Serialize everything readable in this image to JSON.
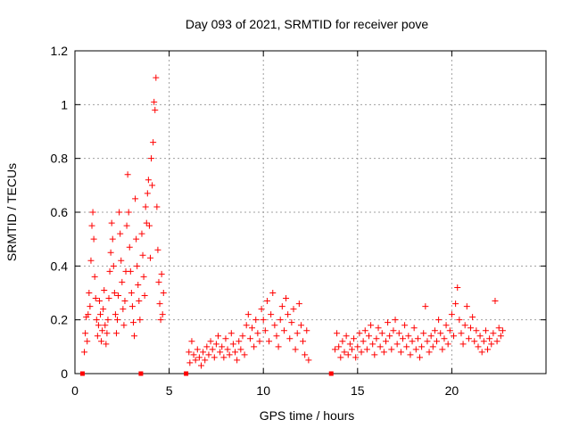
{
  "chart_data": {
    "type": "scatter",
    "title": "Day 093 of 2021, SRMTID for receiver pove",
    "xlabel": "GPS time / hours",
    "ylabel": "SRMTID / TECUs",
    "xlim": [
      0,
      25
    ],
    "ylim": [
      0,
      1.2
    ],
    "xticks": [
      0,
      5,
      10,
      15,
      20
    ],
    "xtick_labels": [
      "0",
      "5",
      "10",
      "15",
      "20"
    ],
    "yticks": [
      0,
      0.2,
      0.4,
      0.6,
      0.8,
      1.0,
      1.2
    ],
    "ytick_labels": [
      "0",
      "0.2",
      "0.4",
      "0.6",
      "0.8",
      "1",
      "1.2"
    ],
    "grid": true,
    "marker": "plus",
    "color": "#ff0000",
    "zero_markers_x": [
      0.4,
      3.5,
      5.9,
      13.6
    ],
    "series": [
      {
        "name": "SRMTID",
        "points": [
          [
            0.5,
            0.08
          ],
          [
            0.55,
            0.15
          ],
          [
            0.6,
            0.21
          ],
          [
            0.65,
            0.12
          ],
          [
            0.7,
            0.22
          ],
          [
            0.75,
            0.3
          ],
          [
            0.8,
            0.25
          ],
          [
            0.85,
            0.42
          ],
          [
            0.9,
            0.55
          ],
          [
            0.95,
            0.6
          ],
          [
            1.0,
            0.5
          ],
          [
            1.05,
            0.36
          ],
          [
            1.1,
            0.28
          ],
          [
            1.15,
            0.2
          ],
          [
            1.2,
            0.14
          ],
          [
            1.25,
            0.18
          ],
          [
            1.3,
            0.27
          ],
          [
            1.35,
            0.22
          ],
          [
            1.4,
            0.12
          ],
          [
            1.45,
            0.16
          ],
          [
            1.5,
            0.24
          ],
          [
            1.55,
            0.31
          ],
          [
            1.6,
            0.18
          ],
          [
            1.65,
            0.11
          ],
          [
            1.7,
            0.15
          ],
          [
            1.75,
            0.2
          ],
          [
            1.8,
            0.28
          ],
          [
            1.85,
            0.38
          ],
          [
            1.9,
            0.45
          ],
          [
            1.95,
            0.56
          ],
          [
            2.0,
            0.5
          ],
          [
            2.05,
            0.4
          ],
          [
            2.1,
            0.3
          ],
          [
            2.15,
            0.22
          ],
          [
            2.2,
            0.15
          ],
          [
            2.25,
            0.2
          ],
          [
            2.3,
            0.29
          ],
          [
            2.35,
            0.6
          ],
          [
            2.4,
            0.52
          ],
          [
            2.45,
            0.42
          ],
          [
            2.5,
            0.34
          ],
          [
            2.55,
            0.24
          ],
          [
            2.6,
            0.18
          ],
          [
            2.65,
            0.27
          ],
          [
            2.7,
            0.38
          ],
          [
            2.75,
            0.55
          ],
          [
            2.8,
            0.74
          ],
          [
            2.85,
            0.6
          ],
          [
            2.9,
            0.47
          ],
          [
            2.95,
            0.38
          ],
          [
            3.0,
            0.3
          ],
          [
            3.05,
            0.25
          ],
          [
            3.1,
            0.19
          ],
          [
            3.15,
            0.14
          ],
          [
            3.2,
            0.65
          ],
          [
            3.25,
            0.5
          ],
          [
            3.3,
            0.4
          ],
          [
            3.35,
            0.33
          ],
          [
            3.4,
            0.27
          ],
          [
            3.45,
            0.2
          ],
          [
            3.55,
            0.52
          ],
          [
            3.6,
            0.44
          ],
          [
            3.65,
            0.36
          ],
          [
            3.7,
            0.29
          ],
          [
            3.75,
            0.62
          ],
          [
            3.8,
            0.56
          ],
          [
            3.85,
            0.67
          ],
          [
            3.9,
            0.72
          ],
          [
            3.95,
            0.55
          ],
          [
            4.0,
            0.43
          ],
          [
            4.05,
            0.8
          ],
          [
            4.1,
            0.7
          ],
          [
            4.15,
            0.86
          ],
          [
            4.2,
            1.01
          ],
          [
            4.25,
            0.98
          ],
          [
            4.3,
            1.1
          ],
          [
            4.35,
            0.62
          ],
          [
            4.4,
            0.46
          ],
          [
            4.45,
            0.34
          ],
          [
            4.5,
            0.26
          ],
          [
            4.55,
            0.2
          ],
          [
            4.6,
            0.37
          ],
          [
            4.65,
            0.22
          ],
          [
            4.7,
            0.3
          ],
          [
            6.05,
            0.08
          ],
          [
            6.1,
            0.04
          ],
          [
            6.2,
            0.12
          ],
          [
            6.3,
            0.07
          ],
          [
            6.4,
            0.05
          ],
          [
            6.5,
            0.09
          ],
          [
            6.6,
            0.06
          ],
          [
            6.7,
            0.03
          ],
          [
            6.8,
            0.08
          ],
          [
            6.9,
            0.05
          ],
          [
            7.0,
            0.1
          ],
          [
            7.1,
            0.07
          ],
          [
            7.2,
            0.12
          ],
          [
            7.3,
            0.09
          ],
          [
            7.4,
            0.06
          ],
          [
            7.5,
            0.11
          ],
          [
            7.6,
            0.14
          ],
          [
            7.7,
            0.08
          ],
          [
            7.8,
            0.1
          ],
          [
            7.9,
            0.06
          ],
          [
            8.0,
            0.13
          ],
          [
            8.1,
            0.09
          ],
          [
            8.2,
            0.07
          ],
          [
            8.3,
            0.15
          ],
          [
            8.4,
            0.11
          ],
          [
            8.5,
            0.08
          ],
          [
            8.6,
            0.05
          ],
          [
            8.7,
            0.12
          ],
          [
            8.8,
            0.09
          ],
          [
            8.9,
            0.14
          ],
          [
            9.0,
            0.07
          ],
          [
            9.1,
            0.18
          ],
          [
            9.2,
            0.22
          ],
          [
            9.3,
            0.13
          ],
          [
            9.4,
            0.17
          ],
          [
            9.5,
            0.1
          ],
          [
            9.6,
            0.2
          ],
          [
            9.7,
            0.15
          ],
          [
            9.8,
            0.12
          ],
          [
            9.9,
            0.24
          ],
          [
            10.0,
            0.2
          ],
          [
            10.1,
            0.16
          ],
          [
            10.2,
            0.27
          ],
          [
            10.3,
            0.12
          ],
          [
            10.4,
            0.22
          ],
          [
            10.5,
            0.3
          ],
          [
            10.6,
            0.18
          ],
          [
            10.7,
            0.14
          ],
          [
            10.8,
            0.1
          ],
          [
            10.9,
            0.2
          ],
          [
            11.0,
            0.25
          ],
          [
            11.1,
            0.16
          ],
          [
            11.2,
            0.28
          ],
          [
            11.3,
            0.22
          ],
          [
            11.4,
            0.13
          ],
          [
            11.5,
            0.19
          ],
          [
            11.6,
            0.24
          ],
          [
            11.7,
            0.09
          ],
          [
            11.8,
            0.15
          ],
          [
            11.9,
            0.26
          ],
          [
            12.0,
            0.18
          ],
          [
            12.1,
            0.12
          ],
          [
            12.2,
            0.07
          ],
          [
            12.3,
            0.16
          ],
          [
            12.4,
            0.05
          ],
          [
            13.8,
            0.09
          ],
          [
            13.9,
            0.15
          ],
          [
            14.0,
            0.1
          ],
          [
            14.1,
            0.06
          ],
          [
            14.2,
            0.12
          ],
          [
            14.3,
            0.08
          ],
          [
            14.4,
            0.14
          ],
          [
            14.5,
            0.07
          ],
          [
            14.6,
            0.11
          ],
          [
            14.7,
            0.09
          ],
          [
            14.8,
            0.13
          ],
          [
            14.9,
            0.06
          ],
          [
            15.0,
            0.1
          ],
          [
            15.1,
            0.15
          ],
          [
            15.2,
            0.08
          ],
          [
            15.3,
            0.12
          ],
          [
            15.4,
            0.16
          ],
          [
            15.5,
            0.09
          ],
          [
            15.6,
            0.14
          ],
          [
            15.7,
            0.18
          ],
          [
            15.8,
            0.11
          ],
          [
            15.9,
            0.07
          ],
          [
            16.0,
            0.13
          ],
          [
            16.1,
            0.17
          ],
          [
            16.2,
            0.1
          ],
          [
            16.3,
            0.15
          ],
          [
            16.4,
            0.08
          ],
          [
            16.5,
            0.12
          ],
          [
            16.6,
            0.19
          ],
          [
            16.7,
            0.14
          ],
          [
            16.8,
            0.09
          ],
          [
            16.9,
            0.16
          ],
          [
            17.0,
            0.2
          ],
          [
            17.1,
            0.11
          ],
          [
            17.2,
            0.15
          ],
          [
            17.3,
            0.08
          ],
          [
            17.4,
            0.13
          ],
          [
            17.5,
            0.18
          ],
          [
            17.6,
            0.1
          ],
          [
            17.7,
            0.14
          ],
          [
            17.8,
            0.07
          ],
          [
            17.9,
            0.12
          ],
          [
            18.0,
            0.17
          ],
          [
            18.1,
            0.09
          ],
          [
            18.2,
            0.13
          ],
          [
            18.3,
            0.06
          ],
          [
            18.4,
            0.1
          ],
          [
            18.5,
            0.15
          ],
          [
            18.6,
            0.25
          ],
          [
            18.7,
            0.12
          ],
          [
            18.8,
            0.08
          ],
          [
            18.9,
            0.14
          ],
          [
            19.0,
            0.1
          ],
          [
            19.1,
            0.16
          ],
          [
            19.2,
            0.12
          ],
          [
            19.3,
            0.2
          ],
          [
            19.4,
            0.15
          ],
          [
            19.5,
            0.09
          ],
          [
            19.6,
            0.13
          ],
          [
            19.7,
            0.18
          ],
          [
            19.8,
            0.11
          ],
          [
            19.9,
            0.16
          ],
          [
            20.0,
            0.22
          ],
          [
            20.1,
            0.14
          ],
          [
            20.2,
            0.26
          ],
          [
            20.3,
            0.32
          ],
          [
            20.4,
            0.2
          ],
          [
            20.5,
            0.15
          ],
          [
            20.6,
            0.11
          ],
          [
            20.7,
            0.18
          ],
          [
            20.8,
            0.25
          ],
          [
            20.9,
            0.13
          ],
          [
            21.0,
            0.17
          ],
          [
            21.1,
            0.21
          ],
          [
            21.2,
            0.12
          ],
          [
            21.3,
            0.16
          ],
          [
            21.4,
            0.1
          ],
          [
            21.5,
            0.14
          ],
          [
            21.6,
            0.08
          ],
          [
            21.7,
            0.12
          ],
          [
            21.8,
            0.16
          ],
          [
            21.9,
            0.09
          ],
          [
            22.0,
            0.13
          ],
          [
            22.1,
            0.11
          ],
          [
            22.2,
            0.15
          ],
          [
            22.3,
            0.27
          ],
          [
            22.4,
            0.12
          ],
          [
            22.5,
            0.17
          ],
          [
            22.6,
            0.14
          ],
          [
            22.7,
            0.16
          ]
        ]
      }
    ]
  }
}
